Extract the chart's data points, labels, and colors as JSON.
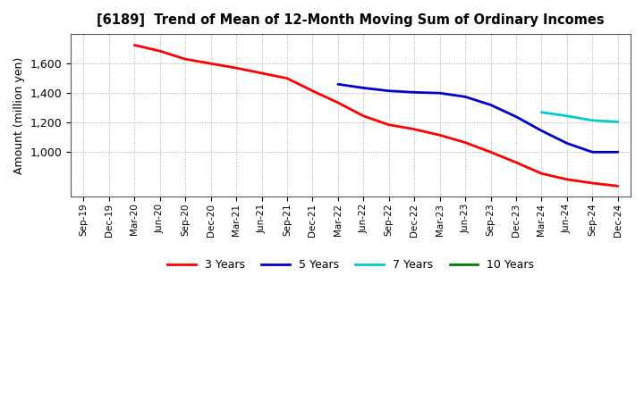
{
  "title": "[6189]  Trend of Mean of 12-Month Moving Sum of Ordinary Incomes",
  "ylabel": "Amount (million yen)",
  "background_color": "#ffffff",
  "plot_bg_color": "#ffffff",
  "grid_color": "#aaaaaa",
  "ylim": [
    700,
    1800
  ],
  "yticks": [
    1000,
    1200,
    1400,
    1600
  ],
  "series": {
    "3years": {
      "color": "#ff0000",
      "label": "3 Years",
      "x": [
        "Mar-20",
        "Jun-20",
        "Sep-20",
        "Dec-20",
        "Mar-21",
        "Jun-21",
        "Sep-21",
        "Dec-21",
        "Mar-22",
        "Jun-22",
        "Sep-22",
        "Dec-22",
        "Mar-23",
        "Jun-23",
        "Sep-23",
        "Dec-23",
        "Mar-24",
        "Jun-24",
        "Sep-24",
        "Dec-24"
      ],
      "y": [
        1725,
        1685,
        1630,
        1600,
        1570,
        1535,
        1500,
        1415,
        1335,
        1245,
        1185,
        1155,
        1115,
        1065,
        1000,
        930,
        855,
        815,
        790,
        770
      ]
    },
    "5years": {
      "color": "#0000cc",
      "label": "5 Years",
      "x": [
        "Mar-22",
        "Jun-22",
        "Sep-22",
        "Dec-22",
        "Mar-23",
        "Jun-23",
        "Sep-23",
        "Dec-23",
        "Mar-24",
        "Jun-24",
        "Sep-24",
        "Dec-24"
      ],
      "y": [
        1460,
        1435,
        1415,
        1405,
        1400,
        1375,
        1320,
        1240,
        1145,
        1060,
        1000,
        1000
      ]
    },
    "7years": {
      "color": "#00cccc",
      "label": "7 Years",
      "x": [
        "Mar-24",
        "Jun-24",
        "Sep-24",
        "Dec-24"
      ],
      "y": [
        1270,
        1245,
        1215,
        1205
      ]
    },
    "10years": {
      "color": "#008000",
      "label": "10 Years",
      "x": [],
      "y": []
    }
  },
  "x_tick_labels": [
    "Sep-19",
    "Dec-19",
    "Mar-20",
    "Jun-20",
    "Sep-20",
    "Dec-20",
    "Mar-21",
    "Jun-21",
    "Sep-21",
    "Dec-21",
    "Mar-22",
    "Jun-22",
    "Sep-22",
    "Dec-22",
    "Mar-23",
    "Jun-23",
    "Sep-23",
    "Dec-23",
    "Mar-24",
    "Jun-24",
    "Sep-24",
    "Dec-24"
  ]
}
